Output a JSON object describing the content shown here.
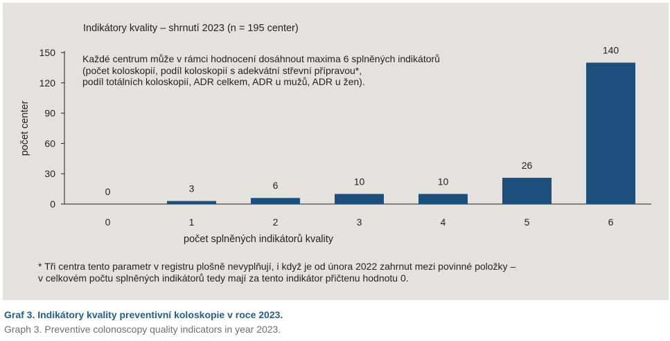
{
  "chart_data": {
    "type": "bar",
    "title": "Indikátory kvality – shrnutí 2023 (n = 195 center)",
    "annotation": "Každé centrum může v rámci hodnocení dosáhnout maxima 6 splněných indikátorů\n(počet koloskopií, podíl koloskopií s adekvátní střevní přípravou*,\npodíl totálních koloskopií, ADR celkem, ADR u mužů, ADR u žen).",
    "xlabel": "počet splněných indikátorů kvality",
    "ylabel": "počet center",
    "categories": [
      "0",
      "1",
      "2",
      "3",
      "4",
      "5",
      "6"
    ],
    "values": [
      0,
      3,
      6,
      10,
      10,
      26,
      140
    ],
    "data_labels": [
      "0",
      "3",
      "6",
      "10",
      "10",
      "26",
      "140"
    ],
    "ylim": [
      0,
      150
    ],
    "yticks": [
      "0",
      "30",
      "60",
      "90",
      "120",
      "150"
    ],
    "bar_color": "#1c4f7c",
    "grid": false,
    "footnote": "* Tři centra tento parametr v registru plošně nevyplňují, i když je od února 2022 zahrnut mezi povinné položky –\nv celkovém počtu splněných indikátorů tedy mají za tento indikátor přičtenu hodnotu 0."
  },
  "caption": {
    "czech": "Graf 3. Indikátory kvality preventivní koloskopie v roce 2023.",
    "english": "Graph 3. Preventive colonoscopy quality indicators in year 2023."
  },
  "colors": {
    "panel_background": "#e5e1dd",
    "caption_accent": "#1f5f8b",
    "caption_secondary": "#6d6e71"
  }
}
